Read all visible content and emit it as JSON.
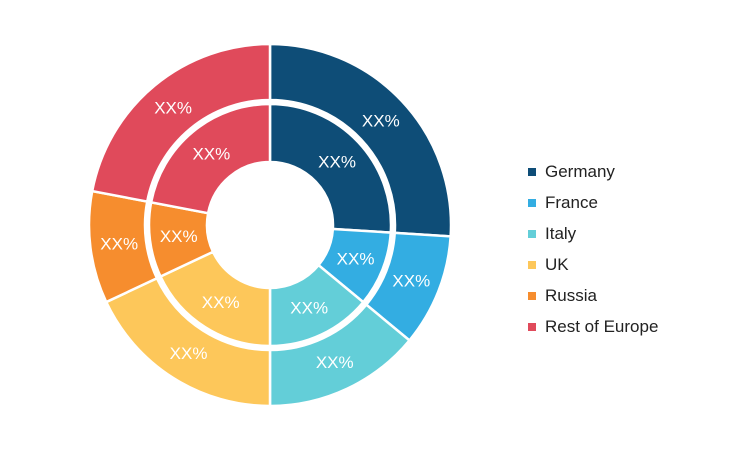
{
  "chart_data": {
    "type": "pie",
    "title": "",
    "legend_position": "right",
    "categories": [
      "Germany",
      "France",
      "Italy",
      "UK",
      "Russia",
      "Rest of Europe"
    ],
    "colors": [
      "#0e4d77",
      "#33ade2",
      "#63ced8",
      "#fdc75a",
      "#f68d2e",
      "#e04a5b"
    ],
    "series": [
      {
        "ring": "outer",
        "values": [
          26,
          10,
          14,
          18,
          10,
          22
        ],
        "labels": [
          "XX%",
          "XX%",
          "XX%",
          "XX%",
          "XX%",
          "XX%"
        ]
      },
      {
        "ring": "inner",
        "values": [
          26,
          10,
          14,
          18,
          10,
          22
        ],
        "labels": [
          "XX%",
          "XX%",
          "XX%",
          "XX%",
          "XX%",
          "XX%"
        ]
      }
    ]
  }
}
